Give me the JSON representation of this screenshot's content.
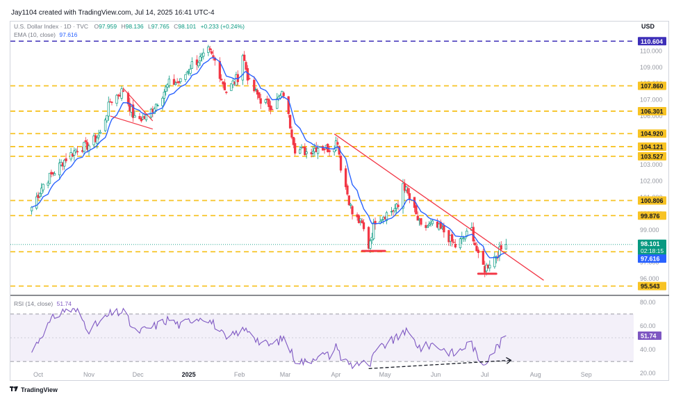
{
  "header": {
    "created_text": "Jay1104 created with TradingView.com, Jul 14, 2025 16:41 UTC-4"
  },
  "legend": {
    "symbol": "U.S. Dollar Index · 1D · TVC",
    "o_label": "O",
    "o_value": "97.959",
    "h_label": "H",
    "h_value": "98.136",
    "l_label": "L",
    "l_value": "97.765",
    "c_label": "C",
    "c_value": "98.101",
    "change": "+0.233 (+0.24%)",
    "ema_label": "EMA (10, close)",
    "ema_value": "97.616",
    "rsi_label": "RSI (14, close)",
    "rsi_value": "51.74"
  },
  "brand": {
    "name": "TradingView"
  },
  "colors": {
    "up": "#089981",
    "down": "#f23645",
    "ema": "#2962ff",
    "level": "#f7c325",
    "trend": "#f23645",
    "rsi": "#7e57c2",
    "purple_level": "#3d2fb8"
  },
  "chart_data": [
    {
      "type": "candlestick",
      "title": "U.S. Dollar Index · 1D · TVC",
      "currency": "USD",
      "ylim": [
        95.1,
        111.0
      ],
      "y_ticks": [
        110.0,
        109.0,
        108.0,
        107.0,
        106.0,
        105.0,
        104.0,
        103.0,
        102.0,
        101.0,
        100.0,
        99.0,
        98.0,
        97.0,
        96.0
      ],
      "x_ticks": [
        "Oct",
        "Nov",
        "Dec",
        "2025",
        "Feb",
        "Mar",
        "Apr",
        "May",
        "Jun",
        "Jul",
        "Aug",
        "Sep"
      ],
      "price_path": [
        [
          "2024-09-27",
          100.4
        ],
        [
          "2024-10-04",
          101.8
        ],
        [
          "2024-10-11",
          102.6
        ],
        [
          "2024-10-18",
          103.4
        ],
        [
          "2024-10-25",
          104.0
        ],
        [
          "2024-11-01",
          104.2
        ],
        [
          "2024-11-08",
          104.9
        ],
        [
          "2024-11-14",
          106.9
        ],
        [
          "2024-11-22",
          107.6
        ],
        [
          "2024-11-29",
          105.8
        ],
        [
          "2024-12-06",
          105.9
        ],
        [
          "2024-12-13",
          106.9
        ],
        [
          "2024-12-20",
          108.0
        ],
        [
          "2024-12-27",
          108.1
        ],
        [
          "2025-01-03",
          109.2
        ],
        [
          "2025-01-10",
          109.6
        ],
        [
          "2025-01-13",
          110.0
        ],
        [
          "2025-01-17",
          109.4
        ],
        [
          "2025-01-24",
          107.5
        ],
        [
          "2025-01-31",
          108.4
        ],
        [
          "2025-02-03",
          109.8
        ],
        [
          "2025-02-07",
          108.0
        ],
        [
          "2025-02-14",
          107.0
        ],
        [
          "2025-02-21",
          106.6
        ],
        [
          "2025-02-28",
          107.4
        ],
        [
          "2025-03-07",
          104.0
        ],
        [
          "2025-03-14",
          103.8
        ],
        [
          "2025-03-21",
          104.1
        ],
        [
          "2025-03-28",
          104.0
        ],
        [
          "2025-04-02",
          104.5
        ],
        [
          "2025-04-04",
          102.9
        ],
        [
          "2025-04-11",
          100.0
        ],
        [
          "2025-04-17",
          99.3
        ],
        [
          "2025-04-21",
          98.0
        ],
        [
          "2025-04-25",
          99.6
        ],
        [
          "2025-05-02",
          100.0
        ],
        [
          "2025-05-09",
          100.4
        ],
        [
          "2025-05-12",
          101.9
        ],
        [
          "2025-05-16",
          100.9
        ],
        [
          "2025-05-23",
          99.1
        ],
        [
          "2025-05-30",
          99.3
        ],
        [
          "2025-06-06",
          98.9
        ],
        [
          "2025-06-13",
          98.0
        ],
        [
          "2025-06-20",
          98.7
        ],
        [
          "2025-06-23",
          99.0
        ],
        [
          "2025-06-27",
          97.3
        ],
        [
          "2025-07-01",
          96.6
        ],
        [
          "2025-07-04",
          97.0
        ],
        [
          "2025-07-11",
          97.8
        ],
        [
          "2025-07-14",
          98.101
        ]
      ],
      "ema_10_last": 97.616,
      "last_close": 98.101,
      "countdown": "02:18:15",
      "horizontal_levels": [
        110.604,
        107.86,
        106.301,
        104.92,
        104.121,
        103.527,
        100.806,
        99.876,
        97.654,
        95.543
      ],
      "price_labels": [
        "110.604",
        "107.860",
        "106.301",
        "104.920",
        "104.121",
        "103.527",
        "100.806",
        "99.876",
        "97.654",
        "95.543"
      ],
      "annotations": [
        {
          "type": "trendline",
          "from": [
            "2025-03-31",
            104.9
          ],
          "to": [
            "2025-08-06",
            95.9
          ]
        },
        {
          "type": "support",
          "from": [
            "2025-04-17",
            97.7
          ],
          "to": [
            "2025-05-01",
            97.7
          ]
        },
        {
          "type": "support",
          "from": [
            "2025-06-27",
            96.3
          ],
          "to": [
            "2025-07-08",
            96.3
          ]
        }
      ]
    },
    {
      "type": "line",
      "title": "RSI (14, close)",
      "ylim": [
        16,
        84
      ],
      "y_ticks": [
        80.0,
        60.0,
        40.0,
        20.0
      ],
      "bands": [
        70,
        30
      ],
      "last": 51.74,
      "values": [
        [
          "2024-09-27",
          38
        ],
        [
          "2024-10-04",
          55
        ],
        [
          "2024-10-11",
          68
        ],
        [
          "2024-10-18",
          74
        ],
        [
          "2024-10-25",
          72
        ],
        [
          "2024-11-01",
          57
        ],
        [
          "2024-11-08",
          63
        ],
        [
          "2024-11-14",
          70
        ],
        [
          "2024-11-22",
          72
        ],
        [
          "2024-11-29",
          55
        ],
        [
          "2024-12-06",
          57
        ],
        [
          "2024-12-13",
          61
        ],
        [
          "2024-12-20",
          66
        ],
        [
          "2024-12-27",
          60
        ],
        [
          "2025-01-03",
          66
        ],
        [
          "2025-01-10",
          68
        ],
        [
          "2025-01-17",
          61
        ],
        [
          "2025-01-24",
          48
        ],
        [
          "2025-01-31",
          55
        ],
        [
          "2025-02-07",
          57
        ],
        [
          "2025-02-14",
          45
        ],
        [
          "2025-02-21",
          44
        ],
        [
          "2025-02-28",
          50
        ],
        [
          "2025-03-07",
          32
        ],
        [
          "2025-03-14",
          29
        ],
        [
          "2025-03-21",
          36
        ],
        [
          "2025-03-28",
          35
        ],
        [
          "2025-04-02",
          44
        ],
        [
          "2025-04-04",
          33
        ],
        [
          "2025-04-11",
          27
        ],
        [
          "2025-04-17",
          30
        ],
        [
          "2025-04-21",
          24
        ],
        [
          "2025-04-25",
          38
        ],
        [
          "2025-05-02",
          45
        ],
        [
          "2025-05-09",
          50
        ],
        [
          "2025-05-12",
          57
        ],
        [
          "2025-05-16",
          52
        ],
        [
          "2025-05-23",
          41
        ],
        [
          "2025-05-30",
          45
        ],
        [
          "2025-06-06",
          40
        ],
        [
          "2025-06-13",
          36
        ],
        [
          "2025-06-20",
          44
        ],
        [
          "2025-06-23",
          46
        ],
        [
          "2025-06-27",
          31
        ],
        [
          "2025-07-01",
          29
        ],
        [
          "2025-07-04",
          36
        ],
        [
          "2025-07-11",
          46
        ],
        [
          "2025-07-14",
          51.74
        ]
      ],
      "annotations": [
        {
          "type": "dashed_trendline",
          "from": [
            "2025-04-21",
            24
          ],
          "to": [
            "2025-07-17",
            31
          ]
        }
      ]
    }
  ]
}
